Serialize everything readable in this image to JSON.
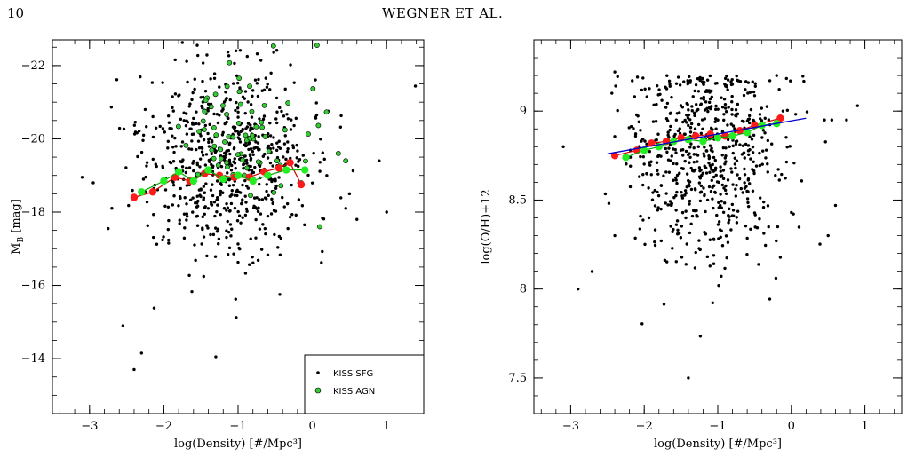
{
  "page": {
    "number": "10",
    "running_head": "WEGNER ET AL."
  },
  "colors": {
    "sfg": "#000000",
    "agn_fill": "#33cc33",
    "red_mean": "#ff1a1a",
    "green_mean": "#22ee22",
    "fit_line": "#0000cc"
  },
  "chart_data": [
    {
      "type": "scatter",
      "xlabel": "log(Density) [#/Mpc³]",
      "ylabel": "M",
      "ylabel_sub": "B",
      "ylabel_unit": " [mag]",
      "xlim": [
        -3.5,
        1.5
      ],
      "ylim": [
        -12.5,
        -22.7
      ],
      "xticks": [
        -3,
        -2,
        -1,
        0,
        1
      ],
      "xtick_labels": [
        "−3",
        "−2",
        "−1",
        "0",
        "1"
      ],
      "yticks": [
        -22,
        -20,
        -18,
        -16,
        -14
      ],
      "ytick_labels": [
        "−22",
        "−20",
        "−18",
        "−16",
        "−14"
      ],
      "legend": {
        "position": "bottom-right",
        "entries": [
          "KISS SFG",
          "KISS AGN"
        ]
      },
      "series": [
        {
          "name": "KISS SFG",
          "marker": "dot",
          "seed": 11,
          "n": 700,
          "x_mean": -1.15,
          "x_sd": 0.55,
          "y_mean": -19.3,
          "y_sd": 1.35,
          "extra_points": [
            [
              -3.1,
              -18.95
            ],
            [
              -2.95,
              -18.8
            ],
            [
              -2.75,
              -17.55
            ],
            [
              -2.55,
              -14.9
            ],
            [
              -2.4,
              -13.7
            ],
            [
              -2.3,
              -14.15
            ],
            [
              -1.3,
              -14.05
            ],
            [
              0.45,
              -18.1
            ],
            [
              0.5,
              -18.5
            ],
            [
              0.9,
              -19.4
            ],
            [
              1.0,
              -18.0
            ],
            [
              0.6,
              -17.8
            ]
          ]
        },
        {
          "name": "KISS AGN",
          "marker": "circle-green",
          "seed": 29,
          "n": 70,
          "x_mean": -1.0,
          "x_sd": 0.45,
          "y_mean": -20.2,
          "y_sd": 0.9,
          "extra_points": [
            [
              0.35,
              -19.6
            ],
            [
              0.45,
              -19.4
            ],
            [
              0.1,
              -17.6
            ],
            [
              -0.15,
              -18.8
            ]
          ]
        },
        {
          "name": "",
          "marker": "mean-red",
          "x": [
            -2.4,
            -2.15,
            -1.85,
            -1.65,
            -1.45,
            -1.25,
            -1.05,
            -0.85,
            -0.65,
            -0.45,
            -0.3,
            -0.15
          ],
          "y": [
            -18.4,
            -18.55,
            -18.95,
            -18.85,
            -19.05,
            -19.0,
            -18.95,
            -18.95,
            -19.1,
            -19.2,
            -19.35,
            -18.75
          ]
        },
        {
          "name": "",
          "marker": "mean-green",
          "x": [
            -2.3,
            -2.0,
            -1.8,
            -1.6,
            -1.4,
            -1.2,
            -1.0,
            -0.8,
            -0.6,
            -0.35,
            -0.1
          ],
          "y": [
            -18.55,
            -18.85,
            -19.1,
            -18.85,
            -19.15,
            -18.9,
            -19.0,
            -18.85,
            -19.0,
            -19.15,
            -19.15
          ]
        }
      ]
    },
    {
      "type": "scatter",
      "xlabel": "log(Density) [#/Mpc³]",
      "ylabel": "log(O/H)+12",
      "xlim": [
        -3.5,
        1.5
      ],
      "ylim": [
        7.3,
        9.4
      ],
      "xticks": [
        -3,
        -2,
        -1,
        0,
        1
      ],
      "xtick_labels": [
        "−3",
        "−2",
        "−1",
        "0",
        "1"
      ],
      "yticks": [
        7.5,
        8,
        8.5,
        9
      ],
      "ytick_labels": [
        "7.5",
        "8",
        "8.5",
        "9"
      ],
      "series": [
        {
          "name": "",
          "marker": "dot",
          "seed": 47,
          "n": 650,
          "x_mean": -1.15,
          "x_sd": 0.55,
          "y_mean": 8.75,
          "y_sd": 0.3,
          "y_cap": 9.2,
          "extra_points": [
            [
              -3.1,
              8.8
            ],
            [
              -2.9,
              8.0
            ],
            [
              -2.4,
              8.3
            ],
            [
              -2.4,
              9.22
            ],
            [
              -1.4,
              7.5
            ],
            [
              0.45,
              8.95
            ],
            [
              0.5,
              8.3
            ],
            [
              0.55,
              8.95
            ],
            [
              0.6,
              8.47
            ],
            [
              0.75,
              8.95
            ],
            [
              0.9,
              9.03
            ],
            [
              0.0,
              8.43
            ],
            [
              -0.2,
              9.2
            ]
          ]
        },
        {
          "name": "",
          "marker": "mean-red",
          "x": [
            -2.4,
            -2.1,
            -1.9,
            -1.7,
            -1.5,
            -1.3,
            -1.1,
            -0.9,
            -0.7,
            -0.5,
            -0.15
          ],
          "y": [
            8.75,
            8.78,
            8.82,
            8.83,
            8.85,
            8.86,
            8.87,
            8.86,
            8.89,
            8.92,
            8.96
          ]
        },
        {
          "name": "",
          "marker": "mean-green",
          "x": [
            -2.25,
            -2.0,
            -1.8,
            -1.6,
            -1.4,
            -1.2,
            -1.0,
            -0.8,
            -0.6,
            -0.4,
            -0.2
          ],
          "y": [
            8.74,
            8.78,
            8.8,
            8.83,
            8.84,
            8.83,
            8.85,
            8.86,
            8.88,
            8.92,
            8.93
          ]
        },
        {
          "name": "",
          "marker": "fit-line",
          "x": [
            -2.5,
            0.2
          ],
          "y": [
            8.76,
            8.96
          ]
        }
      ]
    }
  ]
}
